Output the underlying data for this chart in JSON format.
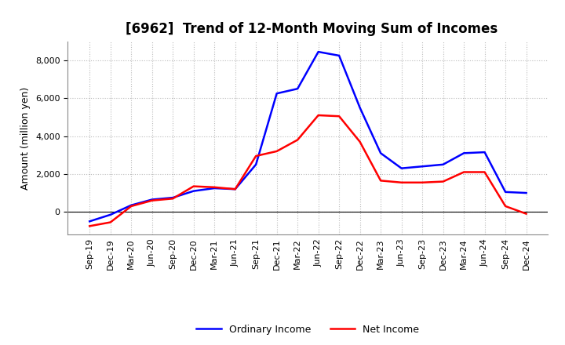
{
  "title": "[6962]  Trend of 12-Month Moving Sum of Incomes",
  "ylabel": "Amount (million yen)",
  "x_labels": [
    "Sep-19",
    "Dec-19",
    "Mar-20",
    "Jun-20",
    "Sep-20",
    "Dec-20",
    "Mar-21",
    "Jun-21",
    "Sep-21",
    "Dec-21",
    "Mar-22",
    "Jun-22",
    "Sep-22",
    "Dec-22",
    "Mar-23",
    "Jun-23",
    "Sep-23",
    "Dec-23",
    "Mar-24",
    "Jun-24",
    "Sep-24",
    "Dec-24"
  ],
  "ordinary_income": [
    -500,
    -150,
    350,
    650,
    750,
    1100,
    1250,
    1200,
    2500,
    6250,
    6500,
    8450,
    8250,
    5500,
    3100,
    2300,
    2400,
    2500,
    3100,
    3150,
    1050,
    1000
  ],
  "net_income": [
    -750,
    -550,
    300,
    600,
    700,
    1350,
    1300,
    1200,
    2950,
    3200,
    3800,
    5100,
    5050,
    3700,
    1650,
    1550,
    1550,
    1600,
    2100,
    2100,
    300,
    -100
  ],
  "ordinary_color": "#0000FF",
  "net_color": "#FF0000",
  "background_color": "#FFFFFF",
  "plot_bg_color": "#FFFFFF",
  "grid_color": "#BBBBBB",
  "ylim": [
    -1200,
    9000
  ],
  "ytick_values": [
    0,
    2000,
    4000,
    6000,
    8000
  ],
  "legend_ordinary": "Ordinary Income",
  "legend_net": "Net Income",
  "title_fontsize": 12,
  "ylabel_fontsize": 9,
  "tick_fontsize": 8,
  "linewidth": 1.8
}
